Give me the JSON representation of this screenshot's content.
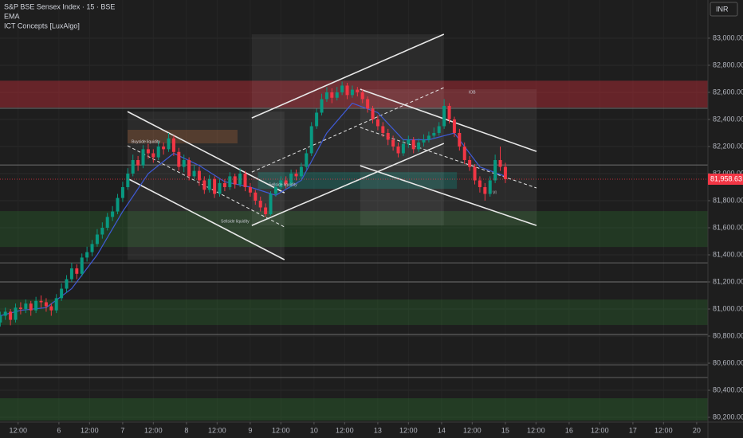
{
  "chart_data": {
    "type": "candlestick",
    "title": "S&P BSE Sensex Index · 15 · BSE",
    "indicators": [
      "EMA",
      "ICT Concepts [LuxAlgo]"
    ],
    "currency": "INR",
    "xlim": [
      1.9,
      279.4
    ],
    "ylim": [
      80165,
      83282
    ],
    "grid": true,
    "yticks": [
      {
        "value": 80200,
        "label": "80,200.00"
      },
      {
        "value": 80400,
        "label": "80,400.00"
      },
      {
        "value": 80600,
        "label": "80,600.00"
      },
      {
        "value": 80800,
        "label": "80,800.00"
      },
      {
        "value": 81000,
        "label": "81,000.00"
      },
      {
        "value": 81200,
        "label": "81,200.00"
      },
      {
        "value": 81400,
        "label": "81,400.00"
      },
      {
        "value": 81600,
        "label": "81,600.00"
      },
      {
        "value": 81800,
        "label": "81,800.00"
      },
      {
        "value": 82000,
        "label": "82,000.00"
      },
      {
        "value": 82200,
        "label": "82,200.00"
      },
      {
        "value": 82400,
        "label": "82,400.00"
      },
      {
        "value": 82600,
        "label": "82,600.00"
      },
      {
        "value": 82800,
        "label": "82,800.00"
      },
      {
        "value": 83000,
        "label": "83,000.00"
      }
    ],
    "xticks": [
      {
        "value": 9,
        "label": "12:00"
      },
      {
        "value": 25,
        "label": "6"
      },
      {
        "value": 37,
        "label": "12:00"
      },
      {
        "value": 50,
        "label": "7"
      },
      {
        "value": 62,
        "label": "12:00"
      },
      {
        "value": 75,
        "label": "8"
      },
      {
        "value": 87,
        "label": "12:00"
      },
      {
        "value": 100,
        "label": "9"
      },
      {
        "value": 112,
        "label": "12:00"
      },
      {
        "value": 125,
        "label": "10"
      },
      {
        "value": 137,
        "label": "12:00"
      },
      {
        "value": 150,
        "label": "13"
      },
      {
        "value": 162,
        "label": "12:00"
      },
      {
        "value": 175,
        "label": "14"
      },
      {
        "value": 187,
        "label": "12:00"
      },
      {
        "value": 200,
        "label": "15"
      },
      {
        "value": 212,
        "label": "12:00"
      },
      {
        "value": 225,
        "label": "16"
      },
      {
        "value": 237,
        "label": "12:00"
      },
      {
        "value": 250,
        "label": "17"
      },
      {
        "value": 262,
        "label": "12:00"
      },
      {
        "value": 275,
        "label": "20"
      }
    ],
    "candles": {
      "up_color": "#089981",
      "down_color": "#f23645",
      "x": [
        2,
        4,
        6,
        8,
        10,
        12,
        14,
        16,
        18,
        20,
        22,
        24,
        26,
        28,
        30,
        32,
        34,
        36,
        38,
        40,
        42,
        44,
        46,
        48,
        50,
        52,
        54,
        56,
        58,
        60,
        62,
        64,
        66,
        68,
        70,
        72,
        74,
        76,
        78,
        80,
        82,
        84,
        86,
        88,
        90,
        92,
        94,
        96,
        98,
        100,
        102,
        104,
        106,
        108,
        110,
        112,
        114,
        116,
        118,
        120,
        122,
        124,
        126,
        128,
        130,
        132,
        134,
        136,
        138,
        140,
        142,
        144,
        146,
        148,
        150,
        152,
        154,
        156,
        158,
        160,
        162,
        164,
        166,
        168,
        170,
        172,
        174,
        176,
        178,
        180,
        182,
        184,
        186,
        188,
        190,
        192,
        194,
        196,
        198,
        200
      ],
      "open": [
        80900,
        80950,
        80980,
        80920,
        81010,
        81000,
        81040,
        80990,
        81060,
        81050,
        81020,
        80990,
        81080,
        81150,
        81220,
        81300,
        81260,
        81380,
        81420,
        81480,
        81550,
        81600,
        81680,
        81720,
        81820,
        81900,
        82000,
        82100,
        82060,
        82180,
        82150,
        82120,
        82200,
        82180,
        82260,
        82160,
        82050,
        82100,
        81980,
        82020,
        81950,
        81880,
        81960,
        81850,
        81930,
        81900,
        81980,
        81920,
        82000,
        81900,
        81860,
        81800,
        81750,
        81700,
        81850,
        81900,
        81950,
        81920,
        82000,
        81980,
        82050,
        82150,
        82350,
        82450,
        82550,
        82600,
        82560,
        82600,
        82650,
        82580,
        82620,
        82600,
        82550,
        82480,
        82400,
        82350,
        82300,
        82250,
        82200,
        82150,
        82220,
        82250,
        82180,
        82230,
        82250,
        82280,
        82300,
        82350,
        82500,
        82400,
        82300,
        82200,
        82100,
        82050,
        81950,
        81900,
        81850,
        81950,
        82100,
        82050
      ],
      "high": [
        80980,
        81010,
        81000,
        81040,
        81050,
        81070,
        81060,
        81090,
        81100,
        81080,
        81040,
        81110,
        81190,
        81250,
        81340,
        81330,
        81410,
        81460,
        81510,
        81590,
        81640,
        81710,
        81760,
        81850,
        81940,
        82040,
        82140,
        82130,
        82210,
        82220,
        82180,
        82240,
        82230,
        82300,
        82280,
        82190,
        82140,
        82120,
        82060,
        82050,
        81980,
        81990,
        81980,
        81960,
        81960,
        82010,
        82000,
        82040,
        82020,
        81930,
        81880,
        81830,
        81780,
        81870,
        81930,
        81980,
        81980,
        82030,
        82030,
        82080,
        82180,
        82380,
        82480,
        82590,
        82640,
        82630,
        82640,
        82680,
        82670,
        82650,
        82640,
        82620,
        82570,
        82500,
        82430,
        82380,
        82330,
        82280,
        82230,
        82250,
        82280,
        82270,
        82260,
        82290,
        82310,
        82340,
        82380,
        82550,
        82520,
        82420,
        82330,
        82230,
        82130,
        82070,
        81980,
        81930,
        81980,
        82140,
        82200,
        82080
      ],
      "low": [
        80870,
        80920,
        80880,
        80900,
        80960,
        80970,
        80950,
        80970,
        81010,
        80980,
        80950,
        80970,
        81060,
        81120,
        81200,
        81220,
        81240,
        81350,
        81390,
        81460,
        81520,
        81580,
        81650,
        81700,
        81790,
        81880,
        81980,
        82020,
        82040,
        82110,
        82080,
        82100,
        82140,
        82160,
        82130,
        82020,
        82010,
        81950,
        81950,
        81910,
        81850,
        81860,
        81820,
        81830,
        81870,
        81880,
        81890,
        81900,
        81870,
        81830,
        81770,
        81720,
        81680,
        81690,
        81830,
        81880,
        81890,
        81900,
        81950,
        81960,
        82030,
        82130,
        82330,
        82430,
        82530,
        82520,
        82540,
        82580,
        82550,
        82560,
        82570,
        82520,
        82450,
        82370,
        82320,
        82270,
        82210,
        82170,
        82120,
        82130,
        82190,
        82150,
        82160,
        82200,
        82230,
        82260,
        82280,
        82330,
        82370,
        82270,
        82170,
        82070,
        82020,
        81920,
        81860,
        81800,
        81830,
        81930,
        82020,
        81930
      ],
      "close": [
        80950,
        80980,
        80920,
        81010,
        81000,
        81040,
        80990,
        81060,
        81050,
        81020,
        80990,
        81080,
        81150,
        81220,
        81300,
        81260,
        81380,
        81420,
        81480,
        81550,
        81600,
        81680,
        81720,
        81820,
        81900,
        82000,
        82100,
        82060,
        82180,
        82150,
        82120,
        82200,
        82180,
        82260,
        82160,
        82050,
        82100,
        81980,
        82020,
        81950,
        81880,
        81960,
        81850,
        81930,
        81900,
        81980,
        81920,
        82000,
        81900,
        81860,
        81800,
        81750,
        81700,
        81850,
        81900,
        81950,
        81920,
        82000,
        81980,
        82050,
        82150,
        82350,
        82450,
        82550,
        82600,
        82560,
        82600,
        82650,
        82580,
        82620,
        82600,
        82550,
        82480,
        82400,
        82350,
        82300,
        82250,
        82200,
        82150,
        82220,
        82250,
        82180,
        82230,
        82250,
        82280,
        82300,
        82350,
        82500,
        82400,
        82300,
        82200,
        82100,
        82050,
        81950,
        81900,
        81850,
        81950,
        82100,
        82050,
        81958.63
      ]
    },
    "price_tag": {
      "value": 81958.63,
      "label": "81,958.63",
      "color": "#f23645"
    },
    "ema": {
      "color": "#3f5bd8",
      "x": [
        2,
        10,
        20,
        30,
        40,
        50,
        60,
        70,
        80,
        90,
        100,
        110,
        120,
        130,
        140,
        150,
        160,
        170,
        180,
        190,
        200
      ],
      "values": [
        80950,
        80990,
        81010,
        81150,
        81400,
        81720,
        82000,
        82150,
        82060,
        81940,
        81900,
        81840,
        81950,
        82300,
        82520,
        82450,
        82250,
        82250,
        82300,
        82050,
        81980
      ]
    },
    "zones": [
      {
        "low": 82488,
        "high": 82686,
        "color": "rgba(190,45,55,0.45)"
      },
      {
        "low": 81458,
        "high": 81723,
        "color": "rgba(46,125,50,0.28)"
      },
      {
        "low": 80882,
        "high": 81070,
        "color": "rgba(46,125,50,0.28)"
      },
      {
        "low": 80176,
        "high": 80341,
        "color": "rgba(46,125,50,0.32)"
      },
      {
        "low": 82223,
        "high": 82323,
        "x": [
          51.9,
          95
        ],
        "color": "rgba(230,120,50,0.22)"
      },
      {
        "low": 81888,
        "high": 82011,
        "x": [
          103,
          181
        ],
        "color": "rgba(0,150,136,0.28)"
      }
    ],
    "levels": [
      82482,
      82064,
      81341,
      81200,
      80812,
      80588,
      80494
    ],
    "channels": [
      {
        "x": [
          51.9,
          113.4
        ],
        "upper": [
          82458,
          81858
        ],
        "mid": [
          82206,
          81606
        ],
        "lower": [
          81964,
          81364
        ]
      },
      {
        "x": [
          100.6,
          175.9
        ],
        "upper": [
          82411,
          83029
        ],
        "mid": [
          82011,
          82635
        ],
        "lower": [
          81617,
          82223
        ]
      },
      {
        "x": [
          143.1,
          212.2
        ],
        "upper": [
          82623,
          82164
        ],
        "mid": [
          82341,
          81894
        ],
        "lower": [
          82058,
          81617
        ]
      }
    ],
    "annotations": [
      {
        "text": "Buyside liquidity",
        "color": "#e07b39"
      },
      {
        "text": "Sellside liquidity",
        "color": "#26a69a"
      },
      {
        "text": "Sellside liquidity",
        "color": "#26a69a"
      },
      {
        "text": "IOB",
        "color": "#f23645"
      },
      {
        "text": "VI",
        "color": "#26a69a"
      }
    ]
  }
}
